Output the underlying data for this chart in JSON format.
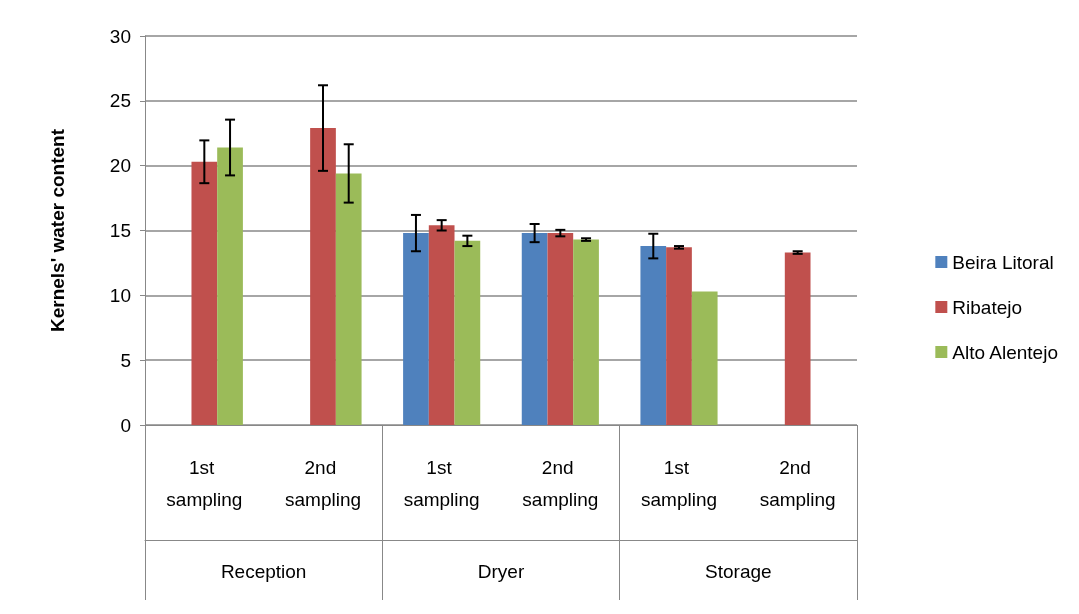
{
  "chart_data": {
    "type": "bar",
    "ylabel": "Kernels' water content",
    "categories": [
      "1st sampling",
      "2nd sampling",
      "1st sampling",
      "2nd sampling",
      "1st sampling",
      "2nd sampling"
    ],
    "annotations": [
      "Reception",
      "Dryer",
      "Storage"
    ],
    "series": [
      {
        "name": "Beira Litoral",
        "color": "#4f81bd",
        "values": [
          null,
          null,
          14.8,
          14.8,
          13.8,
          null
        ],
        "errors": [
          null,
          null,
          1.4,
          0.7,
          0.95,
          null
        ]
      },
      {
        "name": "Ribatejo",
        "color": "#c0504d",
        "values": [
          20.3,
          22.9,
          15.4,
          14.8,
          13.7,
          13.3
        ],
        "errors": [
          1.65,
          3.3,
          0.4,
          0.25,
          0.1,
          0.1
        ]
      },
      {
        "name": "Alto Alentejo",
        "color": "#9bbb59",
        "values": [
          21.4,
          19.4,
          14.2,
          14.3,
          10.3,
          null
        ],
        "errors": [
          2.15,
          2.25,
          0.4,
          0.1,
          null,
          null
        ]
      }
    ],
    "ylim": [
      0,
      30
    ],
    "yticks": [
      0,
      5,
      10,
      15,
      20,
      25,
      30
    ],
    "grid": "y",
    "legend": "right"
  }
}
